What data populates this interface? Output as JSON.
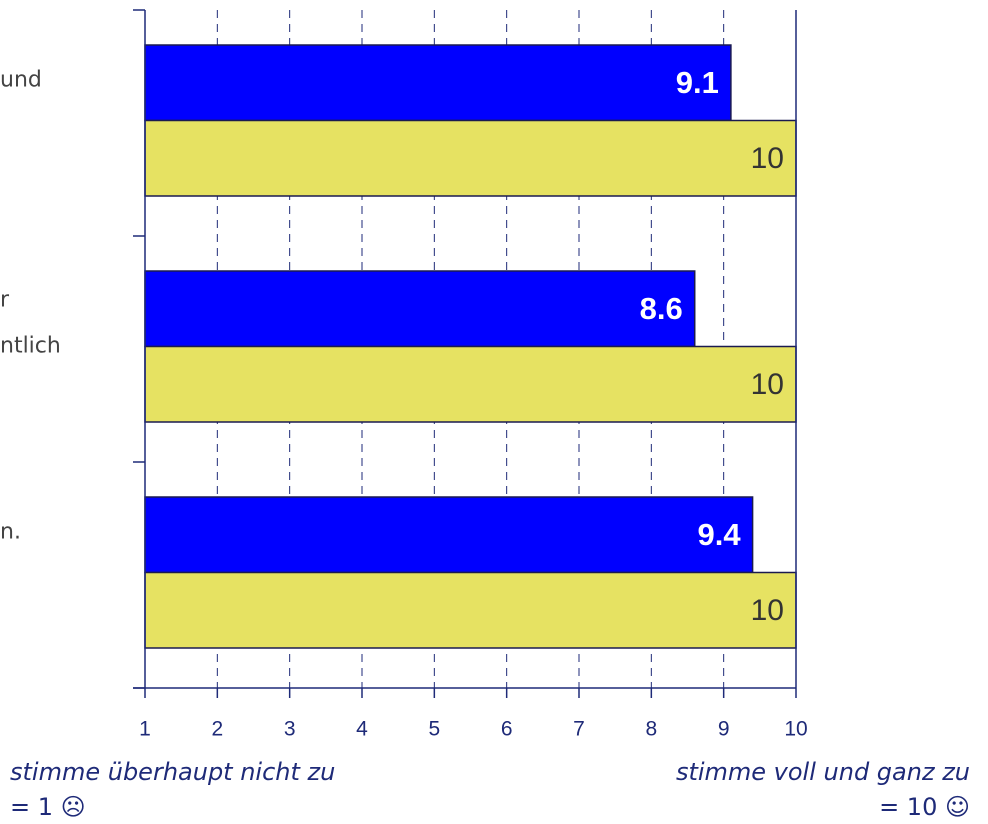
{
  "chart_data": {
    "type": "hbar",
    "categories": [
      [
        "und"
      ],
      [
        "r",
        "ntlich"
      ],
      [
        "n."
      ]
    ],
    "series": [
      {
        "color": "#0000ff",
        "values": [
          9.1,
          8.6,
          9.4
        ]
      },
      {
        "color": "#e6e262",
        "values": [
          10,
          10,
          10
        ]
      }
    ],
    "xlim": [
      1,
      10
    ],
    "xticks": [
      1,
      2,
      3,
      4,
      5,
      6,
      7,
      8,
      9,
      10
    ],
    "grid": true,
    "x_label_left": [
      "stimme überhaupt nicht zu",
      "= 1 ☹"
    ],
    "x_label_right": [
      "stimme voll und ganz zu",
      "= 10 ☺"
    ]
  }
}
